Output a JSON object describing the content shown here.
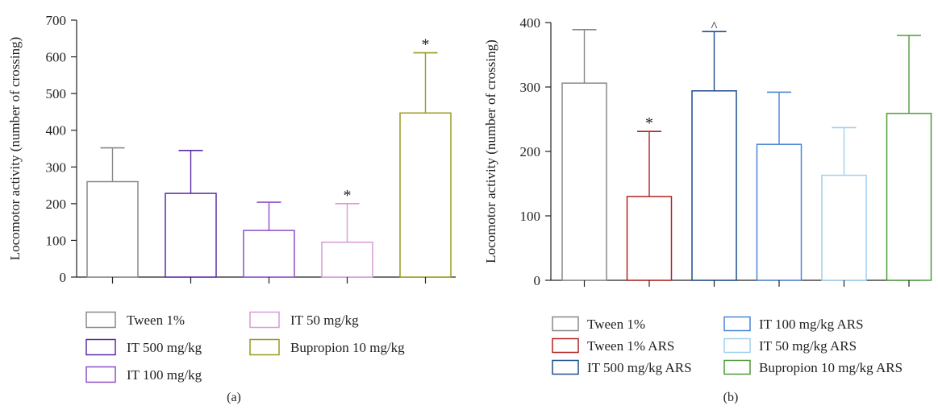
{
  "colors": {
    "axis": "#222222"
  },
  "chart_data": [
    {
      "type": "bar",
      "panel_label": "(a)",
      "ylabel": "Locomotor activity (number of crossing)",
      "ylim": [
        0,
        700
      ],
      "yticks": [
        0,
        100,
        200,
        300,
        400,
        500,
        600,
        700
      ],
      "error_bars": "upper",
      "grid": false,
      "legend_position": "bottom",
      "legend_columns": 2,
      "series": [
        {
          "name": "Tween 1%",
          "value": 260,
          "error_upper": 352,
          "color": "#888888",
          "marker": ""
        },
        {
          "name": "IT 500 mg/kg",
          "value": 228,
          "error_upper": 345,
          "color": "#5a2aa8",
          "marker": ""
        },
        {
          "name": "IT 100 mg/kg",
          "value": 127,
          "error_upper": 204,
          "color": "#8c4fc9",
          "marker": ""
        },
        {
          "name": "IT 50 mg/kg",
          "value": 95,
          "error_upper": 200,
          "color": "#d89ad8",
          "marker": "*"
        },
        {
          "name": "Bupropion 10 mg/kg",
          "value": 447,
          "error_upper": 611,
          "color": "#9a9a1e",
          "marker": "*"
        }
      ]
    },
    {
      "type": "bar",
      "panel_label": "(b)",
      "ylabel": "Locomotor activity (number of crossing)",
      "ylim": [
        0,
        400
      ],
      "yticks": [
        0,
        100,
        200,
        300,
        400
      ],
      "error_bars": "upper",
      "grid": false,
      "legend_position": "bottom",
      "legend_columns": 2,
      "series": [
        {
          "name": "Tween 1%",
          "value": 306,
          "error_upper": 389,
          "color": "#888888",
          "marker": ""
        },
        {
          "name": "Tween 1% ARS",
          "value": 130,
          "error_upper": 231,
          "color": "#b22222",
          "marker": "*"
        },
        {
          "name": "IT 500 mg/kg ARS",
          "value": 294,
          "error_upper": 386,
          "color": "#1f4e8c",
          "marker": "^"
        },
        {
          "name": "IT 100 mg/kg ARS",
          "value": 211,
          "error_upper": 292,
          "color": "#4a86d4",
          "marker": ""
        },
        {
          "name": "IT 50 mg/kg ARS",
          "value": 163,
          "error_upper": 237,
          "color": "#9fcfee",
          "marker": ""
        },
        {
          "name": "Bupropion 10 mg/kg ARS",
          "value": 259,
          "error_upper": 380,
          "color": "#4f9a3a",
          "marker": ""
        }
      ]
    }
  ]
}
